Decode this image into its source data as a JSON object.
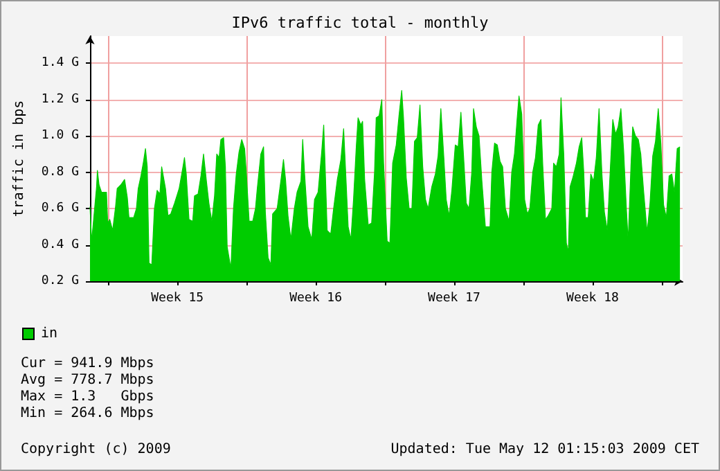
{
  "chart_data": {
    "type": "area",
    "title": "IPv6 traffic total - monthly",
    "ylabel": "traffic in bps",
    "x": [
      "2009-04-12T02:00",
      "2009-04-12T04:00",
      "2009-04-12T10:00",
      "2009-04-12T11:00",
      "2009-04-12T13:00",
      "2009-04-12T16:00",
      "2009-04-12T22:00",
      "2009-04-12T23:30",
      "2009-04-13T02:00",
      "2009-04-13T05:30",
      "2009-04-13T09:00",
      "2009-04-13T11:00",
      "2009-04-13T15:20",
      "2009-04-13T20:00",
      "2009-04-13T23:20",
      "2009-04-14T01:20",
      "2009-04-14T07:00",
      "2009-04-14T10:20",
      "2009-04-14T12:30",
      "2009-04-14T15:50",
      "2009-04-14T19:00",
      "2009-04-14T21:20",
      "2009-04-14T23:30",
      "2009-04-15T01:40",
      "2009-04-15T05:00",
      "2009-04-15T08:10",
      "2009-04-15T11:30",
      "2009-04-15T14:50",
      "2009-04-15T17:00",
      "2009-04-15T21:40",
      "2009-04-16T00:40",
      "2009-04-16T04:00",
      "2009-04-16T08:40",
      "2009-04-16T14:10",
      "2009-04-16T17:20",
      "2009-04-16T20:40",
      "2009-04-16T22:50",
      "2009-04-17T02:10",
      "2009-04-17T06:40",
      "2009-04-17T08:50",
      "2009-04-17T13:10",
      "2009-04-17T16:40",
      "2009-04-17T19:50",
      "2009-04-17T23:20",
      "2009-04-18T02:20",
      "2009-04-18T05:50",
      "2009-04-18T09:10",
      "2009-04-18T11:50",
      "2009-04-18T14:40",
      "2009-04-18T16:50",
      "2009-04-18T20:10",
      "2009-04-18T22:20",
      "2009-04-19T00:30",
      "2009-04-19T05:00",
      "2009-04-19T08:10",
      "2009-04-19T11:30",
      "2009-04-19T14:50",
      "2009-04-19T18:10",
      "2009-04-19T21:40",
      "2009-04-19T23:50",
      "2009-04-20T03:10",
      "2009-04-20T07:30",
      "2009-04-20T10:50",
      "2009-04-20T13:00",
      "2009-04-20T17:20",
      "2009-04-20T20:40",
      "2009-04-20T22:50",
      "2009-04-21T02:10",
      "2009-04-21T05:30",
      "2009-04-21T07:40",
      "2009-04-21T13:10",
      "2009-04-21T17:50",
      "2009-04-21T20:50",
      "2009-04-21T23:20",
      "2009-04-22T02:20",
      "2009-04-22T05:50",
      "2009-04-22T10:00",
      "2009-04-22T13:20",
      "2009-04-22T18:00",
      "2009-04-22T20:10",
      "2009-04-22T22:20",
      "2009-04-23T02:40",
      "2009-04-23T07:10",
      "2009-04-23T10:30",
      "2009-04-23T14:50",
      "2009-04-23T19:10",
      "2009-04-23T21:40",
      "2009-04-23T23:50",
      "2009-04-24T01:50",
      "2009-04-24T06:10",
      "2009-04-24T09:40",
      "2009-04-24T14:10",
      "2009-04-24T18:30",
      "2009-04-24T21:50",
      "2009-04-25T00:00",
      "2009-04-25T03:20",
      "2009-04-25T06:40",
      "2009-04-25T09:50",
      "2009-04-25T13:10",
      "2009-04-25T15:20",
      "2009-04-25T18:40",
      "2009-04-25T20:50",
      "2009-04-25T23:20",
      "2009-04-26T03:40",
      "2009-04-26T07:50",
      "2009-04-26T11:20",
      "2009-04-26T13:20",
      "2009-04-26T16:50",
      "2009-04-26T20:10",
      "2009-04-26T22:20",
      "2009-04-27T02:40",
      "2009-04-27T06:00",
      "2009-04-27T09:20",
      "2009-04-27T13:40",
      "2009-04-27T17:00",
      "2009-04-27T20:20",
      "2009-04-27T22:30",
      "2009-04-28T01:50",
      "2009-04-28T05:20",
      "2009-04-28T08:40",
      "2009-04-28T11:50",
      "2009-04-28T15:10",
      "2009-04-28T18:30",
      "2009-04-28T21:50",
      "2009-04-29T01:10",
      "2009-04-29T04:20",
      "2009-04-29T08:50",
      "2009-04-29T13:10",
      "2009-04-29T16:30",
      "2009-04-29T19:50",
      "2009-04-29T23:20",
      "2009-04-30T02:20",
      "2009-04-30T05:50",
      "2009-04-30T09:10",
      "2009-04-30T13:20",
      "2009-04-30T16:50",
      "2009-04-30T20:10",
      "2009-04-30T23:30",
      "2009-05-01T02:40",
      "2009-05-01T06:00",
      "2009-05-01T09:20",
      "2009-05-01T11:30",
      "2009-05-01T14:50",
      "2009-05-01T18:10",
      "2009-05-01T21:40",
      "2009-05-02T01:50",
      "2009-05-02T07:30",
      "2009-05-02T09:40",
      "2009-05-02T13:00",
      "2009-05-02T16:20",
      "2009-05-02T19:40",
      "2009-05-02T22:50",
      "2009-05-03T02:10",
      "2009-05-03T06:40",
      "2009-05-03T09:50",
      "2009-05-03T13:10",
      "2009-05-03T16:30",
      "2009-05-03T18:40",
      "2009-05-03T22:00",
      "2009-05-04T01:30",
      "2009-05-04T04:50",
      "2009-05-04T07:50",
      "2009-05-04T11:20",
      "2009-05-04T14:40",
      "2009-05-04T18:00",
      "2009-05-04T21:20",
      "2009-05-04T23:30",
      "2009-05-05T02:50",
      "2009-05-05T06:00",
      "2009-05-05T10:30",
      "2009-05-05T12:40",
      "2009-05-05T16:00",
      "2009-05-05T19:30",
      "2009-05-05T21:40",
      "2009-05-06T01:00",
      "2009-05-06T04:10",
      "2009-05-06T06:30",
      "2009-05-06T08:40",
      "2009-05-06T12:00",
      "2009-05-06T16:20",
      "2009-05-06T19:40",
      "2009-05-06T22:50",
      "2009-05-07T01:10",
      "2009-05-07T03:20",
      "2009-05-07T06:40",
      "2009-05-07T09:50",
      "2009-05-07T13:10",
      "2009-05-07T16:30",
      "2009-05-07T19:50",
      "2009-05-07T23:20",
      "2009-05-08T02:20",
      "2009-05-08T05:50",
      "2009-05-08T09:10",
      "2009-05-08T12:30",
      "2009-05-08T15:50",
      "2009-05-08T19:00",
      "2009-05-08T22:20",
      "2009-05-09T01:40",
      "2009-05-09T05:00",
      "2009-05-09T07:10",
      "2009-05-09T10:30",
      "2009-05-09T12:40",
      "2009-05-09T16:00",
      "2009-05-09T19:30",
      "2009-05-09T22:30",
      "2009-05-10T01:50",
      "2009-05-10T06:10",
      "2009-05-10T09:40",
      "2009-05-10T13:00",
      "2009-05-10T16:20",
      "2009-05-10T19:40",
      "2009-05-10T22:50",
      "2009-05-11T02:10",
      "2009-05-11T05:30",
      "2009-05-11T08:50",
      "2009-05-11T12:10",
      "2009-05-11T15:20",
      "2009-05-11T18:40",
      "2009-05-11T22:00"
    ],
    "series": [
      {
        "name": "in",
        "color": "#00cc00",
        "values": [
          0.61,
          0.42,
          0.72,
          0.81,
          0.73,
          0.69,
          0.69,
          0.52,
          0.54,
          0.48,
          0.61,
          0.71,
          0.73,
          0.76,
          0.66,
          0.55,
          0.55,
          0.6,
          0.71,
          0.78,
          0.86,
          0.93,
          0.83,
          0.3,
          0.29,
          0.6,
          0.7,
          0.68,
          0.83,
          0.71,
          0.56,
          0.57,
          0.63,
          0.71,
          0.79,
          0.88,
          0.79,
          0.54,
          0.53,
          0.67,
          0.68,
          0.78,
          0.9,
          0.75,
          0.63,
          0.53,
          0.67,
          0.9,
          0.88,
          0.98,
          0.99,
          0.83,
          0.39,
          0.27,
          0.6,
          0.79,
          0.91,
          0.98,
          0.93,
          0.79,
          0.53,
          0.53,
          0.6,
          0.71,
          0.9,
          0.94,
          0.58,
          0.33,
          0.29,
          0.57,
          0.6,
          0.76,
          0.87,
          0.76,
          0.56,
          0.43,
          0.6,
          0.69,
          0.75,
          0.98,
          0.8,
          0.5,
          0.43,
          0.65,
          0.69,
          0.91,
          1.06,
          0.77,
          0.48,
          0.46,
          0.6,
          0.76,
          0.87,
          1.04,
          0.83,
          0.5,
          0.43,
          0.65,
          0.94,
          1.1,
          1.06,
          1.08,
          0.76,
          0.51,
          0.52,
          0.8,
          1.1,
          1.11,
          1.2,
          0.85,
          0.42,
          0.41,
          0.85,
          0.95,
          1.11,
          1.25,
          1.1,
          0.77,
          0.6,
          0.6,
          0.97,
          0.99,
          1.17,
          0.83,
          0.65,
          0.6,
          0.72,
          0.79,
          0.89,
          1.15,
          0.89,
          0.65,
          0.56,
          0.7,
          0.95,
          0.94,
          1.13,
          0.88,
          0.63,
          0.6,
          0.8,
          1.15,
          1.05,
          1.0,
          0.75,
          0.5,
          0.5,
          0.8,
          0.96,
          0.95,
          0.86,
          0.83,
          0.6,
          0.53,
          0.8,
          0.9,
          1.1,
          1.22,
          1.12,
          0.65,
          0.57,
          0.6,
          0.8,
          0.88,
          1.06,
          1.09,
          0.84,
          0.54,
          0.56,
          0.6,
          0.85,
          0.83,
          0.9,
          1.21,
          0.9,
          0.41,
          0.36,
          0.72,
          0.77,
          0.85,
          0.94,
          0.99,
          0.81,
          0.55,
          0.55,
          0.79,
          0.75,
          0.88,
          1.15,
          0.79,
          0.58,
          0.48,
          0.79,
          1.09,
          1.01,
          1.05,
          1.15,
          0.92,
          0.6,
          0.42,
          0.83,
          1.05,
          1.0,
          0.98,
          0.9,
          0.7,
          0.47,
          0.63,
          0.89,
          0.97,
          1.15,
          0.96,
          0.62,
          0.55,
          0.78,
          0.79,
          0.69,
          0.93,
          0.94
        ]
      }
    ],
    "xlim": [
      "2009-04-12T02:00",
      "2009-05-12T01:15"
    ],
    "xticks": [
      {
        "value": "2009-04-13T00:00",
        "label": null
      },
      {
        "value": "2009-04-16T12:00",
        "label": "Week 15"
      },
      {
        "value": "2009-04-20T00:00",
        "label": null
      },
      {
        "value": "2009-04-23T12:00",
        "label": "Week 16"
      },
      {
        "value": "2009-04-27T00:00",
        "label": null
      },
      {
        "value": "2009-04-30T12:00",
        "label": "Week 17"
      },
      {
        "value": "2009-05-04T00:00",
        "label": null
      },
      {
        "value": "2009-05-07T12:00",
        "label": "Week 18"
      },
      {
        "value": "2009-05-11T00:00",
        "label": null
      }
    ],
    "ylim": [
      0.2,
      1.55
    ],
    "yticks": [
      {
        "value": 0.2,
        "label": "0.2 G"
      },
      {
        "value": 0.4,
        "label": "0.4 G"
      },
      {
        "value": 0.6,
        "label": "0.6 G"
      },
      {
        "value": 0.8,
        "label": "0.8 G"
      },
      {
        "value": 1.0,
        "label": "1.0 G"
      },
      {
        "value": 1.2,
        "label": "1.2 G"
      },
      {
        "value": 1.4,
        "label": "1.4 G"
      }
    ],
    "grid": true,
    "legend": "bottom left",
    "annotations": [
      "Cur = 941.9 Mbps",
      "Avg = 778.7 Mbps",
      "Max = 1.3   Gbps",
      "Min = 264.6 Mbps",
      "Copyright (c) 2009",
      "Updated: Tue May 12 01:15:03 2009 CET"
    ]
  }
}
